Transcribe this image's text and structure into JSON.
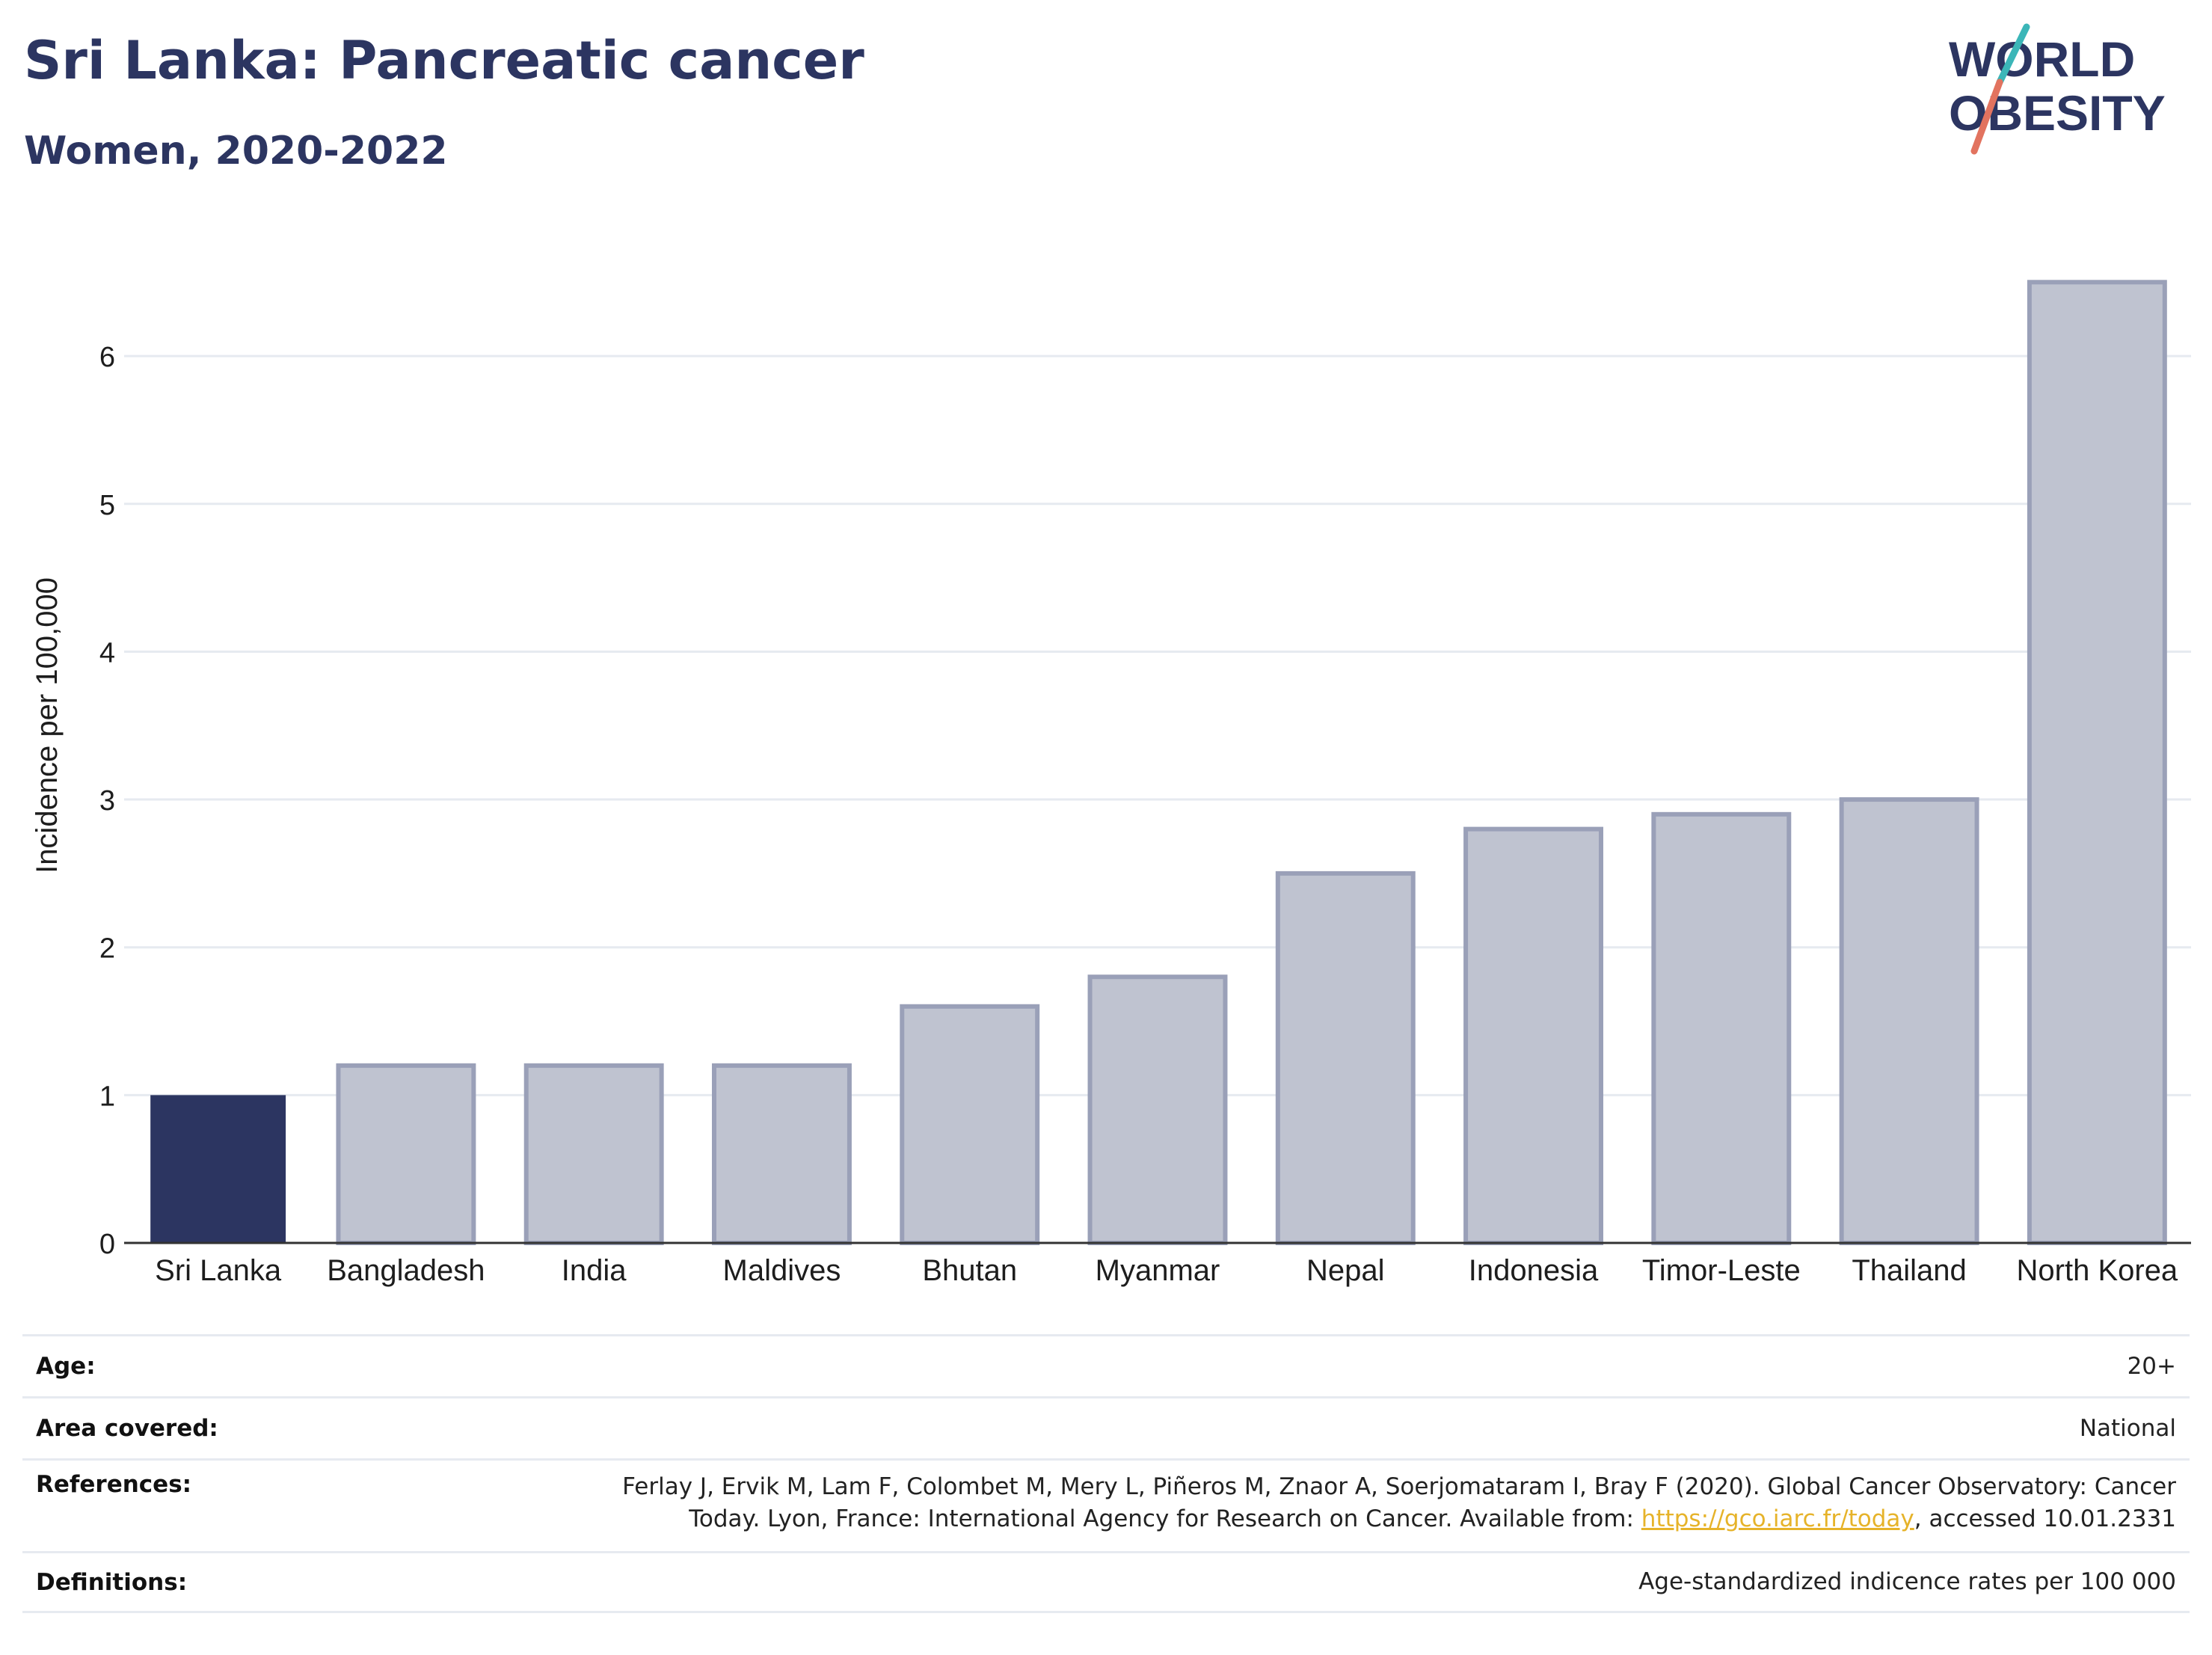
{
  "header": {
    "title": "Sri Lanka: Pancreatic cancer",
    "subtitle": "Women, 2020-2022"
  },
  "logo": {
    "line1": "WORLD",
    "line2": "OBESITY",
    "accent_teal": "#3bb6b8",
    "accent_coral": "#e2735f",
    "brand_navy": "#2c3561"
  },
  "chart_data": {
    "type": "bar",
    "categories": [
      "Sri Lanka",
      "Bangladesh",
      "India",
      "Maldives",
      "Bhutan",
      "Myanmar",
      "Nepal",
      "Indonesia",
      "Timor-Leste",
      "Thailand",
      "North Korea"
    ],
    "values": [
      1.0,
      1.2,
      1.2,
      1.2,
      1.6,
      1.8,
      2.5,
      2.8,
      2.9,
      3.0,
      6.5
    ],
    "highlight_index": 0,
    "highlight_color": "#2c3561",
    "bar_color": "#bfc3d0",
    "bar_stroke_color": "#9aa0b8",
    "ylabel": "Incidence per 100,000",
    "yticks": [
      0,
      1,
      2,
      3,
      4,
      5,
      6
    ],
    "ylim": [
      0,
      6.8
    ],
    "grid": true
  },
  "meta": {
    "age_label": "Age:",
    "age_value": "20+",
    "area_label": "Area covered:",
    "area_value": "National",
    "references_label": "References:",
    "references_line1": "Ferlay J, Ervik M, Lam F, Colombet M, Mery L, Piñeros M, Znaor A, Soerjomataram I, Bray F (2020). Global Cancer Observatory: Cancer",
    "references_line2_pre": "Today. Lyon, France: International Agency for Research on Cancer. Available from: ",
    "references_link": "https://gco.iarc.fr/today",
    "references_line2_post": ", accessed 10.01.2331",
    "definitions_label": "Definitions:",
    "definitions_value": "Age-standardized indicence rates per 100 000"
  }
}
